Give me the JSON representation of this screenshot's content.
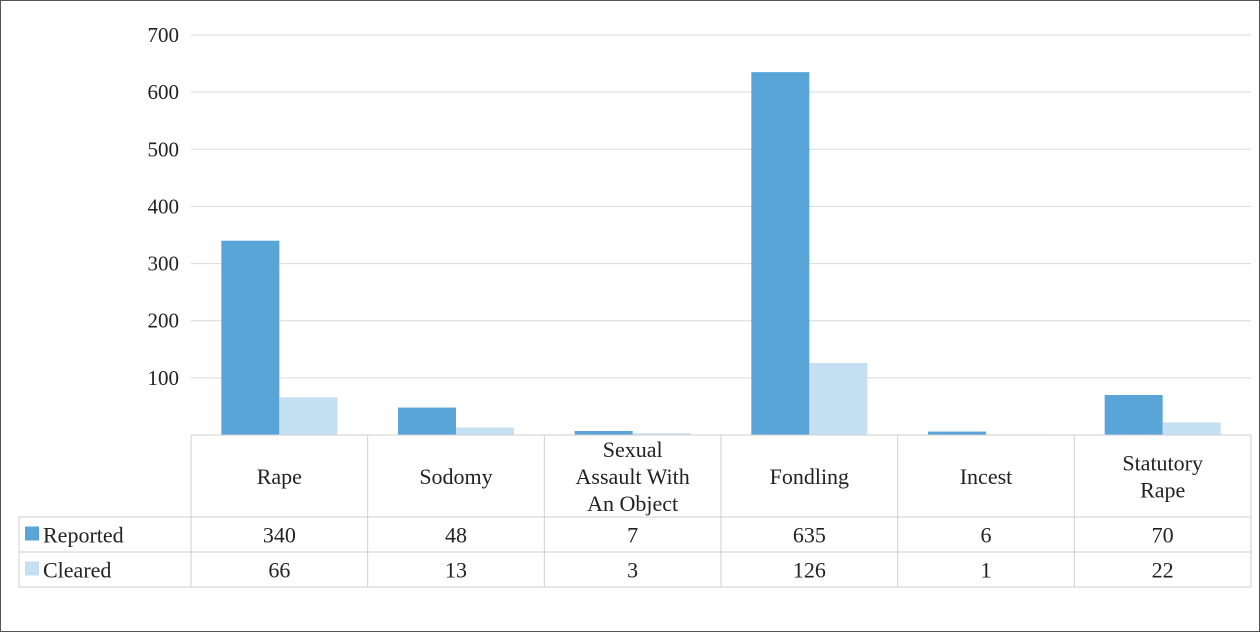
{
  "chart_data": {
    "type": "bar",
    "title": "",
    "xlabel": "",
    "ylabel": "",
    "ylim": [
      0,
      700
    ],
    "yticks": [
      100,
      200,
      300,
      400,
      500,
      600,
      700
    ],
    "grid": true,
    "legend": "data-table",
    "categories": [
      [
        "Rape"
      ],
      [
        "Sodomy"
      ],
      [
        "Sexual",
        "Assault With",
        "An Object"
      ],
      [
        "Fondling"
      ],
      [
        "Incest"
      ],
      [
        "Statutory",
        "Rape"
      ]
    ],
    "series": [
      {
        "name": "Reported",
        "color": "#5aa5d8",
        "values": [
          340,
          48,
          7,
          635,
          6,
          70
        ]
      },
      {
        "name": "Cleared",
        "color": "#c5dff3",
        "values": [
          66,
          13,
          3,
          126,
          1,
          22
        ]
      }
    ]
  }
}
